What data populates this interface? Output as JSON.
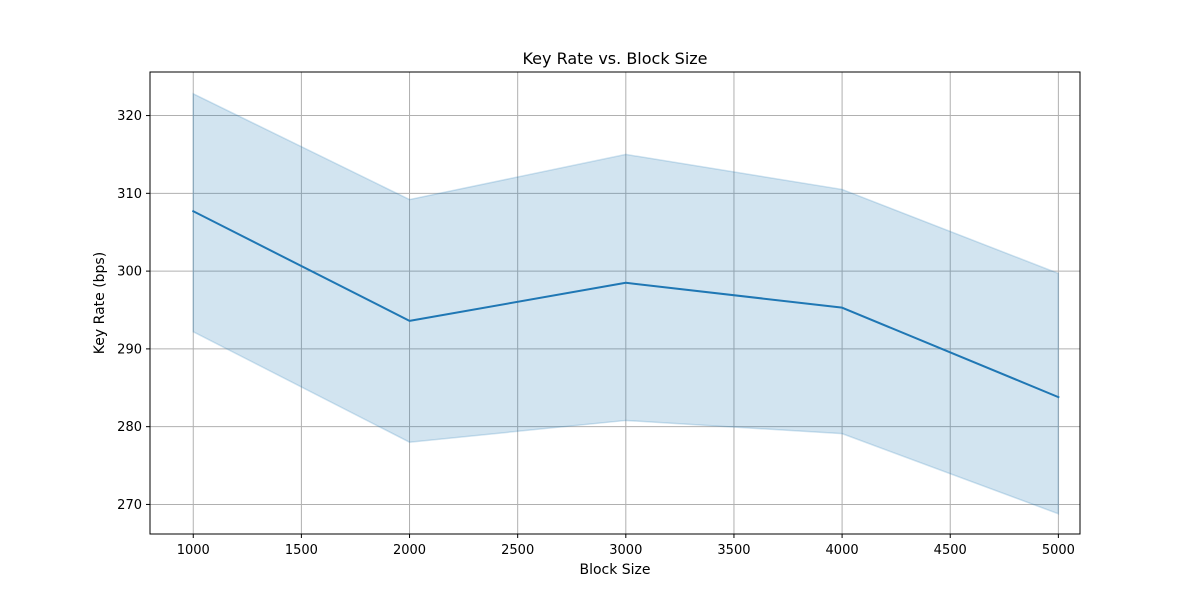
{
  "chart_data": {
    "type": "line",
    "title": "Key Rate vs. Block Size",
    "xlabel": "Block Size",
    "ylabel": "Key Rate (bps)",
    "x": [
      1000,
      2000,
      3000,
      4000,
      5000
    ],
    "series": [
      {
        "values": [
          307.7,
          293.6,
          298.5,
          295.3,
          283.8
        ],
        "band_upper": [
          322.8,
          309.2,
          315.0,
          310.5,
          299.7
        ],
        "band_lower": [
          292.2,
          278.0,
          280.8,
          279.1,
          268.8
        ]
      }
    ],
    "xlim": [
      800,
      5100
    ],
    "ylim": [
      266.2,
      325.6
    ],
    "xticks": [
      1000,
      1500,
      2000,
      2500,
      3000,
      3500,
      4000,
      4500,
      5000
    ],
    "yticks": [
      270,
      280,
      290,
      300,
      310,
      320
    ],
    "grid": true,
    "colors": {
      "line": "#1f77b4",
      "band": "#1f77b4"
    }
  }
}
